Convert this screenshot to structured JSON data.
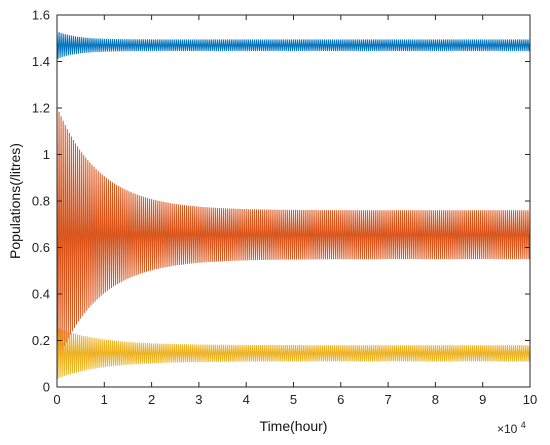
{
  "chart_data": {
    "type": "line",
    "xlabel": "Time(hour)",
    "ylabel": "Populations(/litres)",
    "x_exponent_label": "×10",
    "x_exponent_power": "4",
    "xlim": [
      0,
      10
    ],
    "ylim": [
      0,
      1.6
    ],
    "x_ticks": [
      0,
      1,
      2,
      3,
      4,
      5,
      6,
      7,
      8,
      9,
      10
    ],
    "y_ticks": [
      0,
      0.2,
      0.4,
      0.6,
      0.8,
      1,
      1.2,
      1.4,
      1.6
    ],
    "grid": false,
    "series": [
      {
        "color": "#0072BD",
        "center": 1.47,
        "initial_amplitude": 0.06,
        "steady_amplitude": 0.025,
        "decay_time": 0.4
      },
      {
        "color": "#D95319",
        "center": 0.655,
        "initial_amplitude": 0.55,
        "steady_amplitude": 0.105,
        "decay_time": 0.9
      },
      {
        "color": "#EDB120",
        "center": 0.145,
        "initial_amplitude": 0.11,
        "steady_amplitude": 0.035,
        "decay_time": 0.9
      }
    ]
  }
}
